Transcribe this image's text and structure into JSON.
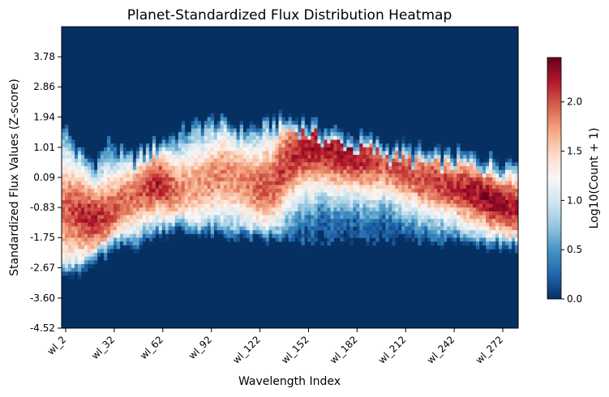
{
  "chart_data": {
    "type": "heatmap",
    "title": "Planet-Standardized Flux Distribution Heatmap",
    "xlabel": "Wavelength Index",
    "ylabel": "Standardized Flux Values (Z-score)",
    "x_tick_labels": [
      "wl_2",
      "wl_32",
      "wl_62",
      "wl_92",
      "wl_122",
      "wl_152",
      "wl_182",
      "wl_212",
      "wl_242",
      "wl_272"
    ],
    "y_tick_labels": [
      "3.78",
      "2.86",
      "1.94",
      "1.01",
      "0.09",
      "-0.83",
      "-1.75",
      "-2.67",
      "-3.60",
      "-4.52"
    ],
    "x_range": [
      "wl_0",
      "wl_282"
    ],
    "y_range": [
      -4.52,
      4.7
    ],
    "colorbar": {
      "label": "Log10(Count + 1)",
      "range": [
        0.0,
        2.45
      ],
      "ticks": [
        "0.0",
        "0.5",
        "1.0",
        "1.5",
        "2.0"
      ],
      "colormap": "RdBu_r"
    },
    "profile": {
      "note_free": true,
      "wavelength_index": [
        0,
        10,
        20,
        30,
        40,
        50,
        60,
        70,
        80,
        90,
        100,
        110,
        120,
        130,
        140,
        150,
        160,
        170,
        180,
        190,
        200,
        210,
        220,
        230,
        240,
        250,
        260,
        270,
        282
      ],
      "upper_edge_z": [
        1.8,
        0.9,
        0.5,
        1.2,
        0.7,
        0.9,
        1.2,
        1.4,
        1.6,
        1.8,
        1.8,
        1.6,
        1.6,
        1.8,
        1.9,
        1.8,
        1.6,
        1.5,
        1.3,
        1.3,
        1.1,
        1.0,
        0.9,
        0.8,
        0.8,
        0.8,
        0.7,
        0.6,
        0.6
      ],
      "lower_edge_z": [
        -2.7,
        -2.9,
        -2.5,
        -2.2,
        -2.0,
        -1.9,
        -1.6,
        -1.5,
        -1.6,
        -1.6,
        -1.7,
        -1.7,
        -1.8,
        -1.8,
        -1.8,
        -1.9,
        -1.8,
        -1.8,
        -1.8,
        -1.8,
        -1.8,
        -1.8,
        -1.8,
        -1.8,
        -1.8,
        -1.9,
        -1.9,
        -2.0,
        -2.1
      ],
      "peak_z": [
        -0.9,
        -1.0,
        -1.2,
        -1.0,
        -0.6,
        -0.3,
        -0.1,
        -0.3,
        -0.2,
        0.0,
        0.2,
        0.0,
        -0.2,
        -0.1,
        0.6,
        1.0,
        1.1,
        0.9,
        0.8,
        0.7,
        0.6,
        0.3,
        0.1,
        0.0,
        -0.2,
        -0.3,
        -0.5,
        -0.7,
        -0.9
      ],
      "peak_log_count": [
        1.9,
        2.1,
        2.2,
        2.0,
        1.9,
        2.0,
        2.2,
        1.9,
        1.7,
        1.8,
        1.8,
        1.8,
        1.9,
        2.0,
        2.1,
        2.2,
        2.3,
        2.2,
        2.3,
        2.1,
        2.0,
        2.0,
        2.0,
        2.1,
        2.1,
        2.2,
        2.3,
        2.3,
        2.2
      ]
    }
  },
  "colors": {
    "background_cell": "#053061",
    "colormap_stops": [
      "#053061",
      "#2166ac",
      "#4393c3",
      "#92c5de",
      "#d1e5f0",
      "#f7f7f7",
      "#fddbc7",
      "#f4a582",
      "#d6604d",
      "#b2182b",
      "#67001f"
    ]
  }
}
